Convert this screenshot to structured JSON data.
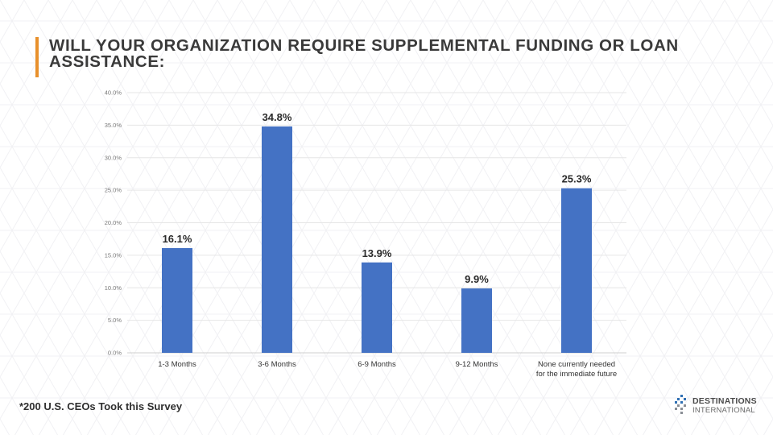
{
  "title": "WILL YOUR ORGANIZATION REQUIRE SUPPLEMENTAL FUNDING OR LOAN ASSISTANCE:",
  "footnote": "*200 U.S. CEOs Took this Survey",
  "logo": {
    "line1": "DESTINATIONS",
    "line2": "INTERNATIONAL",
    "icon": "diamond-dots-icon"
  },
  "colors": {
    "accent_bar": "#e8902c",
    "bar": "#4472c4",
    "gridline": "#e6e6e6"
  },
  "chart_data": {
    "type": "bar",
    "title": "",
    "xlabel": "",
    "ylabel": "",
    "categories": [
      [
        "1-3 Months"
      ],
      [
        "3-6 Months"
      ],
      [
        "6-9 Months"
      ],
      [
        "9-12 Months"
      ],
      [
        "None currently needed",
        "for the immediate future"
      ]
    ],
    "values": [
      16.1,
      34.8,
      13.9,
      9.9,
      25.3
    ],
    "data_labels": [
      "16.1%",
      "34.8%",
      "13.9%",
      "9.9%",
      "25.3%"
    ],
    "ylim": [
      0,
      40
    ],
    "yticks": [
      0,
      5,
      10,
      15,
      20,
      25,
      30,
      35,
      40
    ],
    "ytick_labels": [
      "0.0%",
      "5.0%",
      "10.0%",
      "15.0%",
      "20.0%",
      "25.0%",
      "30.0%",
      "35.0%",
      "40.0%"
    ],
    "grid": true,
    "legend": "none"
  }
}
